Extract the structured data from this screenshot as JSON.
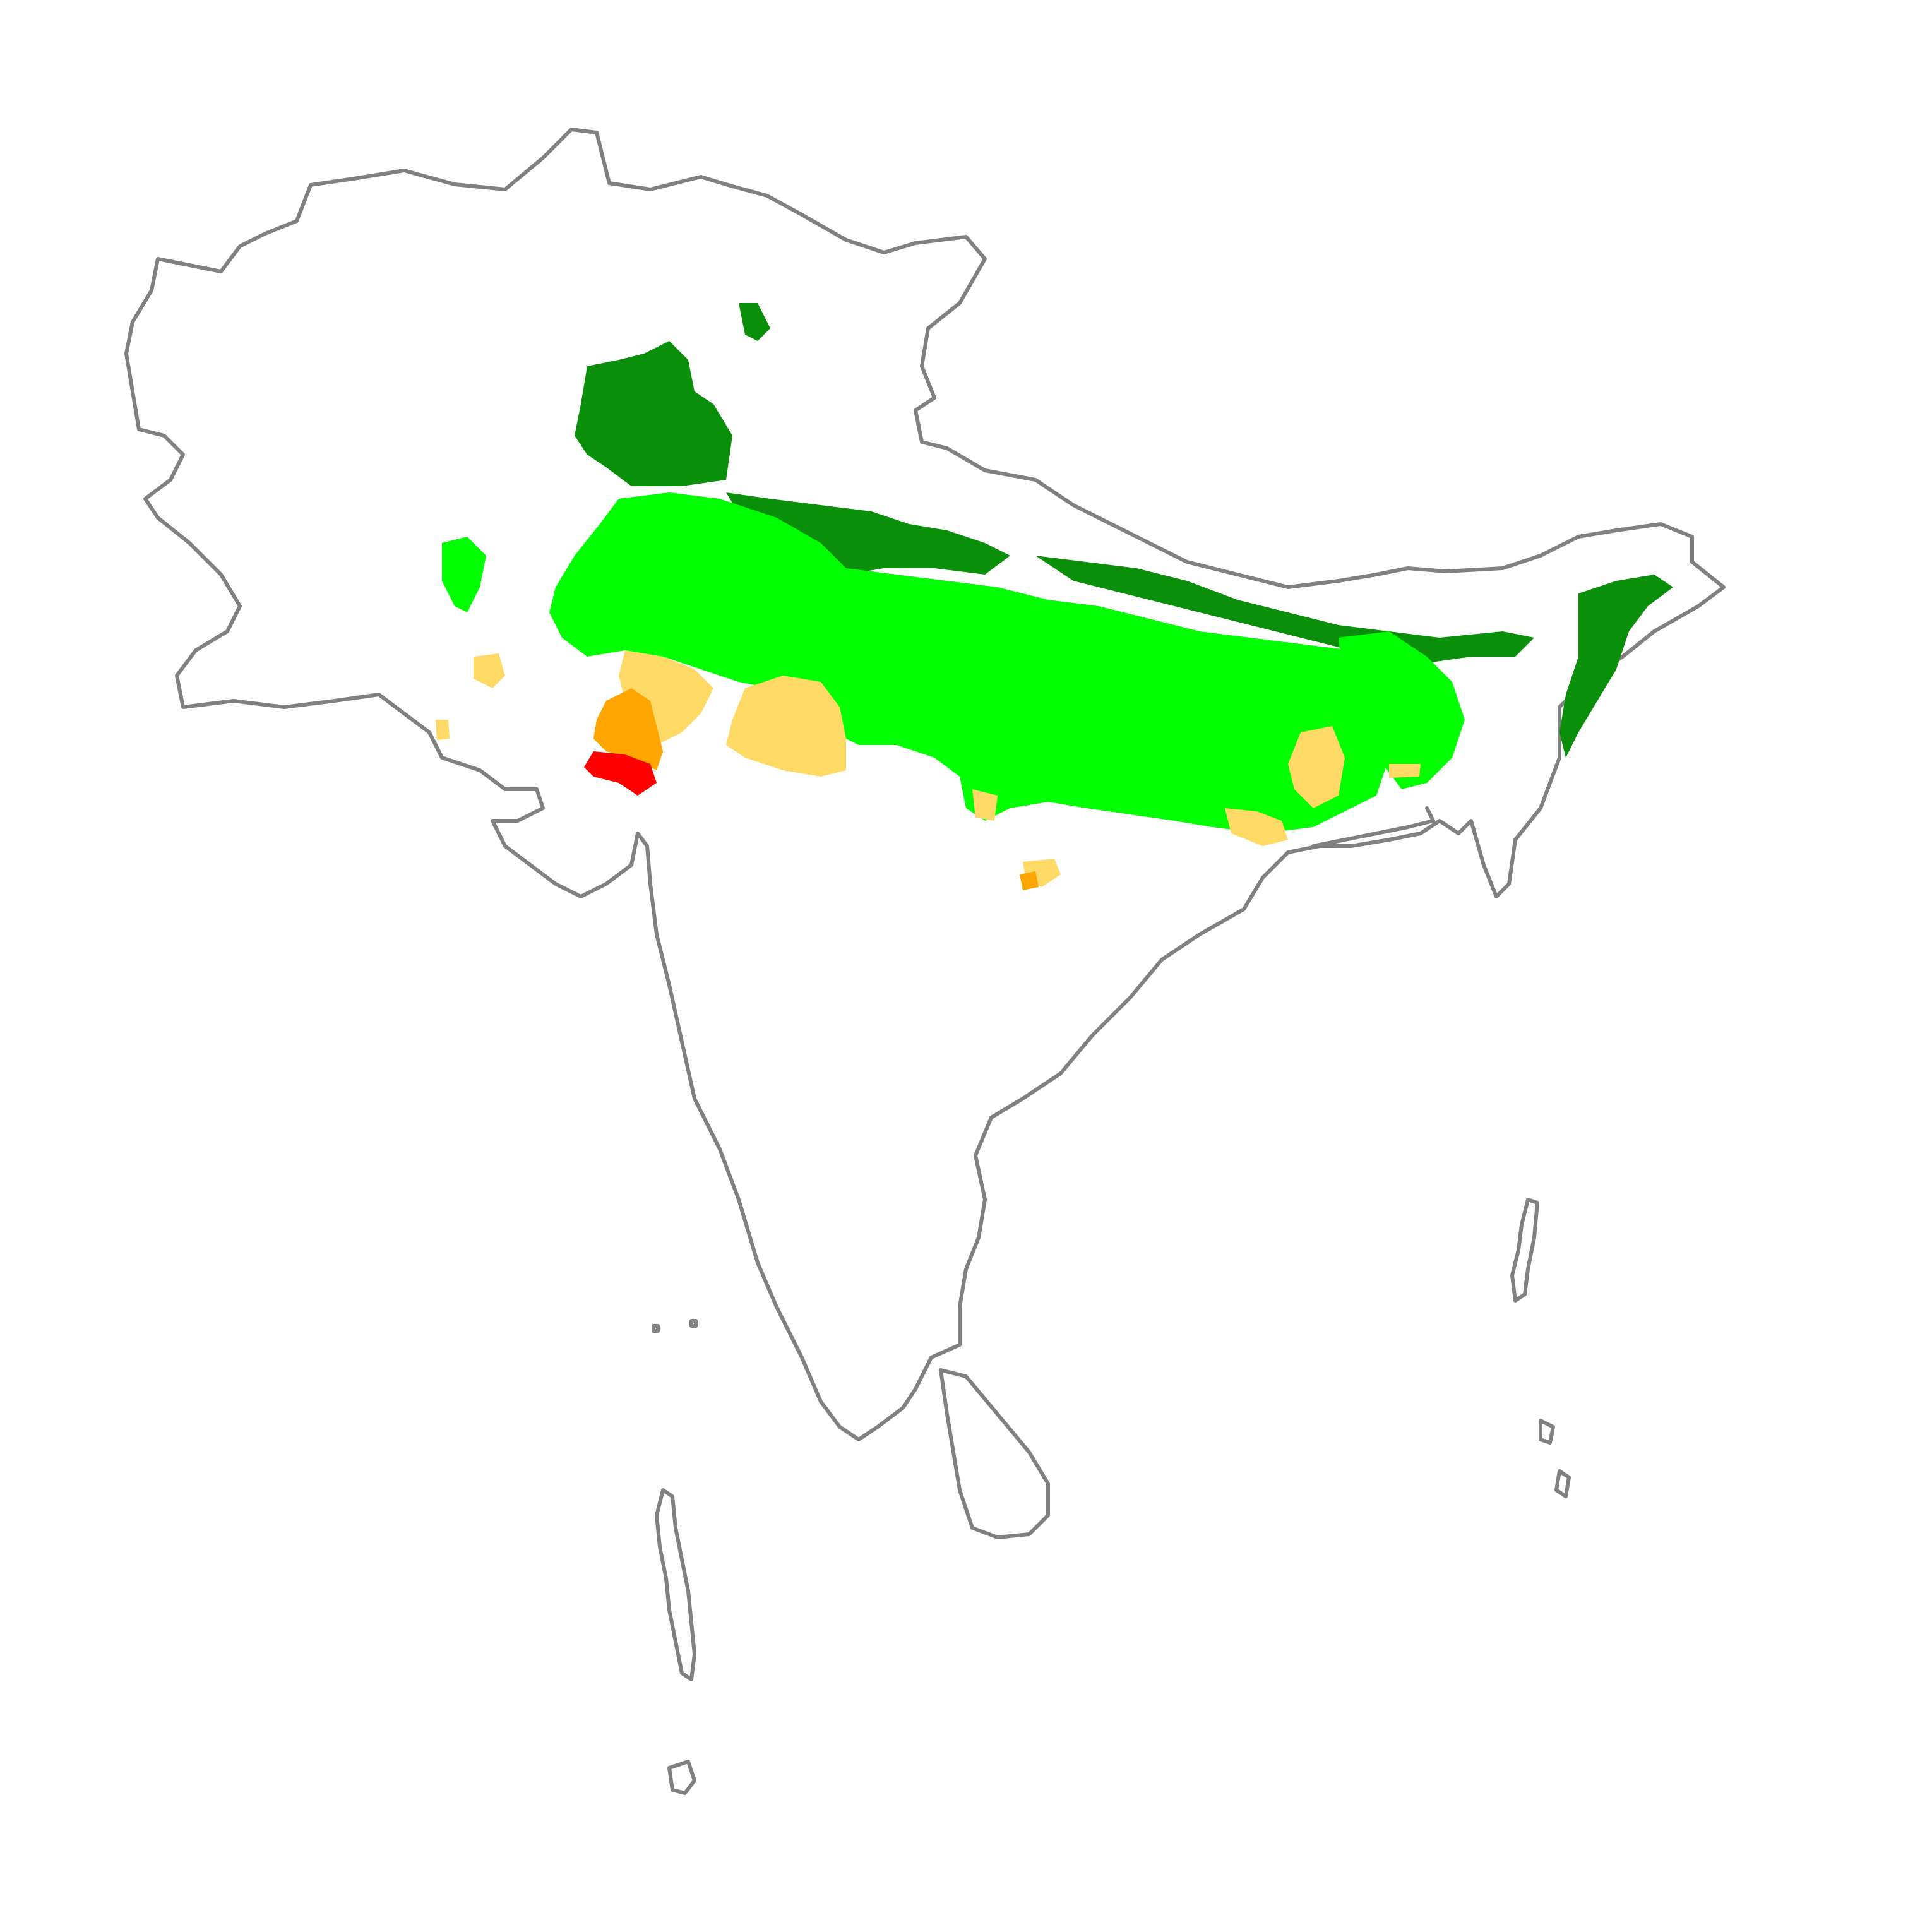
{
  "map": {
    "legend": [],
    "colors": {
      "outline": "#808080",
      "class_dark_green": "#0a8f0a",
      "class_bright_green": "#00ff00",
      "class_light_yellow": "#ffd966",
      "class_orange": "#ffa500",
      "class_red": "#ff0000",
      "background": "#ffffff"
    }
  }
}
